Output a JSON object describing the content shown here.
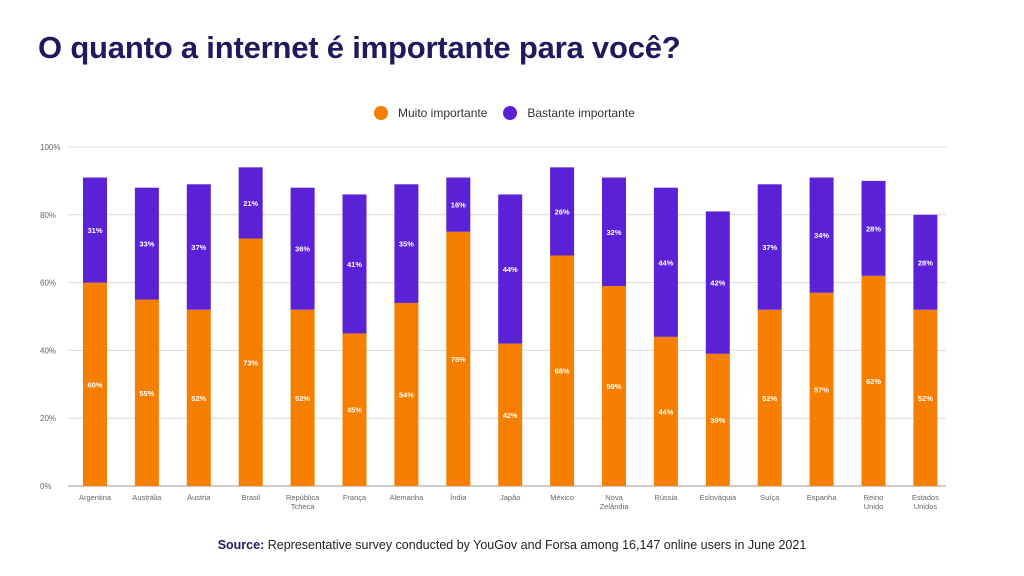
{
  "title": "O quanto a internet é importante para você?",
  "legend": {
    "muito_label": "Muito importante",
    "bastante_label": "Bastante importante"
  },
  "colors": {
    "muito": "#f77f00",
    "bastante": "#5b21d6",
    "title": "#1d1a5e",
    "grid": "#d9d9d9"
  },
  "source": {
    "label": "Source:",
    "text": " Representative survey conducted by YouGov and Forsa among 16,147 online users in June 2021"
  },
  "chart_data": {
    "type": "bar",
    "stacked": true,
    "categories": [
      "Argentina",
      "Austrália",
      "Áustria",
      "Brasil",
      "República\nTcheca",
      "França",
      "Alemanha",
      "Índia",
      "Japão",
      "México",
      "Nova\nZelândia",
      "Rússia",
      "Eslováquia",
      "Suíça",
      "Espanha",
      "Reino\nUnido",
      "Estados\nUnidos"
    ],
    "series": [
      {
        "name": "Muito importante",
        "values": [
          60,
          55,
          52,
          73,
          52,
          45,
          54,
          75,
          42,
          68,
          59,
          44,
          39,
          52,
          57,
          62,
          52
        ],
        "labels": [
          "60%",
          "55%",
          "52%",
          "73%",
          "52%",
          "45%",
          "54%",
          "75%",
          "42%",
          "68%",
          "59%",
          "44%",
          "39%",
          "52%",
          "57%",
          "62%",
          "52%"
        ]
      },
      {
        "name": "Bastante importante",
        "values": [
          31,
          33,
          37,
          21,
          36,
          41,
          35,
          16,
          44,
          26,
          32,
          44,
          42,
          37,
          34,
          28,
          28
        ],
        "labels": [
          "31%",
          "33%",
          "37%",
          "21%",
          "36%",
          "41%",
          "35%",
          "16%",
          "44%",
          "26%",
          "32%",
          "44%",
          "42%",
          "37%",
          "34%",
          "28%",
          "28%"
        ]
      }
    ],
    "yticks": [
      "0%",
      "20%",
      "40%",
      "60%",
      "80%",
      "100%"
    ],
    "ylim": [
      0,
      100
    ],
    "grid": true,
    "legend_position": "top"
  }
}
